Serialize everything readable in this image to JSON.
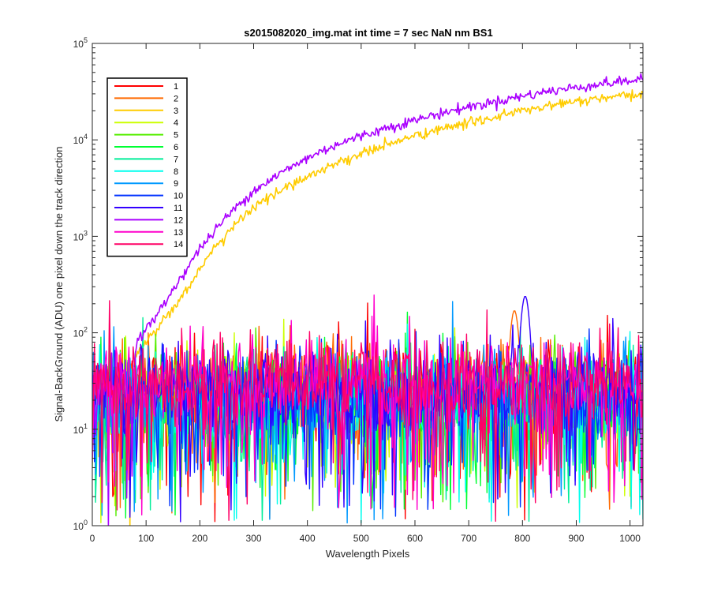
{
  "chart_data": {
    "type": "line",
    "title": "s2015082020_img.mat int time = 7 sec  NaN nm BS1",
    "xlabel": "Wavelength Pixels",
    "ylabel": "Signal-BackGround (ADU) one pixel down the track direction",
    "xlim": [
      0,
      1024
    ],
    "ylim": [
      1,
      100000
    ],
    "yscale": "log",
    "x_ticks": [
      "0",
      "100",
      "200",
      "300",
      "400",
      "500",
      "600",
      "700",
      "800",
      "900",
      "1000"
    ],
    "y_ticks": [
      {
        "base": "10",
        "exp": "0"
      },
      {
        "base": "10",
        "exp": "1"
      },
      {
        "base": "10",
        "exp": "2"
      },
      {
        "base": "10",
        "exp": "3"
      },
      {
        "base": "10",
        "exp": "4"
      },
      {
        "base": "10",
        "exp": "5"
      }
    ],
    "legend_position": "top-left",
    "grid": false,
    "series": [
      {
        "name": "1",
        "color": "#ff0000",
        "kind": "noise",
        "level": 25
      },
      {
        "name": "2",
        "color": "#ff6a00",
        "kind": "noise",
        "level": 27,
        "peak": {
          "x": 785,
          "value": 170
        }
      },
      {
        "name": "3",
        "color": "#ffcc00",
        "kind": "signal",
        "points": [
          [
            0,
            25
          ],
          [
            60,
            45
          ],
          [
            80,
            60
          ],
          [
            100,
            80
          ],
          [
            120,
            110
          ],
          [
            150,
            180
          ],
          [
            200,
            450
          ],
          [
            250,
            1100
          ],
          [
            300,
            2000
          ],
          [
            350,
            3000
          ],
          [
            400,
            4200
          ],
          [
            450,
            5600
          ],
          [
            500,
            7200
          ],
          [
            550,
            9000
          ],
          [
            600,
            11000
          ],
          [
            650,
            13000
          ],
          [
            700,
            15000
          ],
          [
            750,
            17500
          ],
          [
            800,
            20000
          ],
          [
            850,
            22500
          ],
          [
            900,
            25000
          ],
          [
            950,
            27000
          ],
          [
            1000,
            28500
          ],
          [
            1024,
            30000
          ]
        ]
      },
      {
        "name": "4",
        "color": "#ccff00",
        "kind": "noise",
        "level": 22
      },
      {
        "name": "5",
        "color": "#55ee00",
        "kind": "noise",
        "level": 20
      },
      {
        "name": "6",
        "color": "#00ff33",
        "kind": "noise",
        "level": 20
      },
      {
        "name": "7",
        "color": "#00ee99",
        "kind": "noise",
        "level": 20
      },
      {
        "name": "8",
        "color": "#00ffee",
        "kind": "noise",
        "level": 20
      },
      {
        "name": "9",
        "color": "#0099ff",
        "kind": "noise",
        "level": 20
      },
      {
        "name": "10",
        "color": "#0033ff",
        "kind": "noise",
        "level": 22
      },
      {
        "name": "11",
        "color": "#3300ff",
        "kind": "noise",
        "level": 25,
        "peak": {
          "x": 805,
          "value": 240
        }
      },
      {
        "name": "12",
        "color": "#aa00ff",
        "kind": "signal",
        "points": [
          [
            0,
            30
          ],
          [
            60,
            55
          ],
          [
            80,
            75
          ],
          [
            100,
            110
          ],
          [
            120,
            150
          ],
          [
            150,
            280
          ],
          [
            200,
            750
          ],
          [
            250,
            1600
          ],
          [
            300,
            3000
          ],
          [
            350,
            4500
          ],
          [
            400,
            6500
          ],
          [
            450,
            8800
          ],
          [
            500,
            11000
          ],
          [
            550,
            13500
          ],
          [
            600,
            16000
          ],
          [
            650,
            19000
          ],
          [
            700,
            22000
          ],
          [
            750,
            25000
          ],
          [
            800,
            28500
          ],
          [
            850,
            32000
          ],
          [
            900,
            35000
          ],
          [
            950,
            38500
          ],
          [
            1000,
            41000
          ],
          [
            1024,
            43000
          ]
        ]
      },
      {
        "name": "13",
        "color": "#ff00cc",
        "kind": "noise",
        "level": 30
      },
      {
        "name": "14",
        "color": "#ff0066",
        "kind": "noise",
        "level": 30
      }
    ]
  }
}
